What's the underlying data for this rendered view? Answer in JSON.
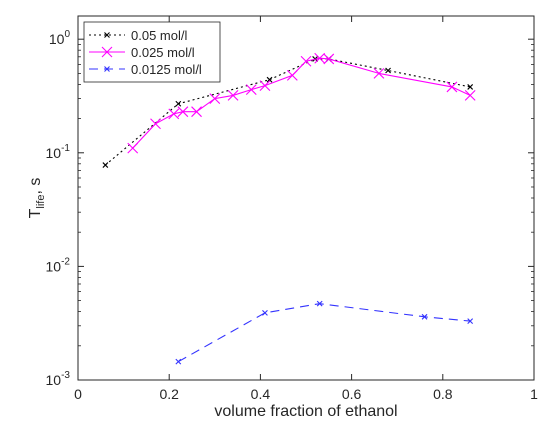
{
  "chart_data": {
    "type": "line",
    "xlabel": "volume fraction of ethanol",
    "ylabel_main": "T",
    "ylabel_sub": "life",
    "ylabel_suffix": ", s",
    "xlim": [
      0,
      1
    ],
    "ylim": [
      0.001,
      1.6
    ],
    "yscale": "log",
    "x_ticks": [
      0,
      0.2,
      0.4,
      0.6,
      0.8,
      1
    ],
    "x_tick_labels": [
      "0",
      "0.2",
      "0.4",
      "0.6",
      "0.8",
      "1"
    ],
    "y_ticks": [
      0.001,
      0.01,
      0.1,
      1
    ],
    "y_tick_mantissa": [
      "10",
      "10",
      "10",
      "10"
    ],
    "y_tick_exponents": [
      "-3",
      "-2",
      "-1",
      "0"
    ],
    "grid": false,
    "legend_position": "top-left",
    "series": [
      {
        "name": "0.05 mol/l",
        "color": "#000000",
        "line_style": "dotted",
        "marker": "x-small",
        "x": [
          0.06,
          0.22,
          0.42,
          0.52,
          0.55,
          0.68,
          0.86
        ],
        "y": [
          0.078,
          0.27,
          0.44,
          0.67,
          0.67,
          0.53,
          0.38
        ]
      },
      {
        "name": "0.025 mol/l",
        "color": "#ff00ff",
        "line_style": "solid",
        "marker": "x-large",
        "x": [
          0.12,
          0.17,
          0.21,
          0.23,
          0.26,
          0.3,
          0.34,
          0.38,
          0.41,
          0.47,
          0.5,
          0.53,
          0.55,
          0.66,
          0.82,
          0.86
        ],
        "y": [
          0.11,
          0.18,
          0.22,
          0.23,
          0.23,
          0.3,
          0.32,
          0.36,
          0.39,
          0.48,
          0.64,
          0.68,
          0.67,
          0.5,
          0.38,
          0.32
        ]
      },
      {
        "name": "0.0125 mol/l",
        "color": "#3333ff",
        "line_style": "dashed",
        "marker": "x-small",
        "x": [
          0.22,
          0.41,
          0.53,
          0.76,
          0.86
        ],
        "y": [
          0.00145,
          0.0039,
          0.0047,
          0.0036,
          0.0033
        ]
      }
    ]
  }
}
